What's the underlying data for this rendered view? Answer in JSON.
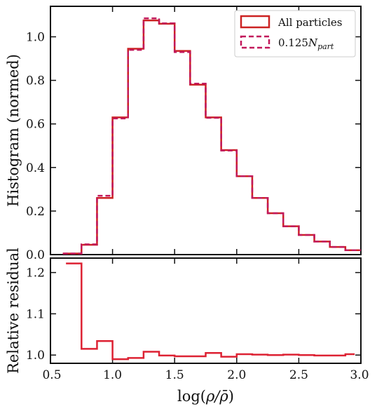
{
  "chart_data": [
    {
      "type": "line",
      "drawstyle": "steps",
      "ylabel": "Histogram (normed)",
      "xlim": [
        0.5,
        3.0
      ],
      "ylim": [
        0.0,
        1.14
      ],
      "yticks": [
        0.0,
        0.2,
        0.4,
        0.6,
        0.8,
        1.0
      ],
      "ytick_labels": [
        "0.0",
        "0.2",
        "0.4",
        "0.6",
        "0.8",
        "1.0"
      ],
      "legend_position": "top-right",
      "bin_edges": [
        0.6,
        0.75,
        0.875,
        1.0,
        1.125,
        1.25,
        1.375,
        1.5,
        1.625,
        1.75,
        1.875,
        2.0,
        2.125,
        2.25,
        2.375,
        2.5,
        2.625,
        2.75,
        2.875,
        3.0
      ],
      "series": [
        {
          "name": "All particles",
          "line_style": "solid",
          "color": "#cc2222",
          "values": [
            0.005,
            0.045,
            0.26,
            0.63,
            0.945,
            1.075,
            1.06,
            0.935,
            0.78,
            0.63,
            0.48,
            0.36,
            0.26,
            0.19,
            0.13,
            0.09,
            0.06,
            0.035,
            0.02
          ]
        },
        {
          "name": "0.125N_part",
          "name_display": {
            "base": "0.125",
            "symbol": "N",
            "subscript": "part"
          },
          "line_style": "dashed",
          "color": "#c2185b",
          "values": [
            0.005,
            0.047,
            0.27,
            0.625,
            0.94,
            1.085,
            1.062,
            0.93,
            0.785,
            0.628,
            0.478,
            0.36,
            0.26,
            0.19,
            0.13,
            0.09,
            0.06,
            0.035,
            0.02
          ]
        }
      ]
    },
    {
      "type": "line",
      "drawstyle": "steps",
      "ylabel": "Relative residual",
      "xlabel": "log(ρ/ρ̄)",
      "xlim": [
        0.5,
        3.0
      ],
      "ylim": [
        0.98,
        1.235
      ],
      "xticks": [
        0.5,
        1.0,
        1.5,
        2.0,
        2.5,
        3.0
      ],
      "xtick_labels": [
        "0.5",
        "1.0",
        "1.5",
        "2.0",
        "2.5",
        "3.0"
      ],
      "yticks": [
        1.0,
        1.1,
        1.2
      ],
      "ytick_labels": [
        "1.0",
        "1.1",
        "1.2"
      ],
      "bin_edges": [
        0.625,
        0.75,
        0.875,
        1.0,
        1.125,
        1.25,
        1.375,
        1.5,
        1.625,
        1.75,
        1.875,
        2.0,
        2.125,
        2.25,
        2.375,
        2.5,
        2.625,
        2.75,
        2.875,
        2.95
      ],
      "series": [
        {
          "color": "#dd2233",
          "values": [
            1.222,
            1.015,
            1.034,
            0.99,
            0.993,
            1.008,
            0.999,
            0.997,
            0.997,
            1.005,
            0.996,
            1.002,
            1.001,
            1.0,
            1.001,
            1.0,
            0.999,
            0.999,
            1.002
          ]
        }
      ]
    }
  ]
}
